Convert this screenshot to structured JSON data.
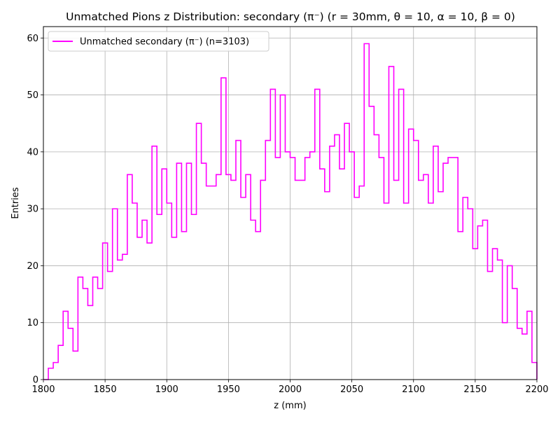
{
  "chart_data": {
    "type": "histogram-step",
    "title": "Unmatched Pions z Distribution: secondary (π⁻) (r = 30mm, θ = 10, α = 10, β = 0)",
    "xlabel": "z (mm)",
    "ylabel": "Entries",
    "xlim": [
      1800,
      2200
    ],
    "ylim": [
      0,
      62
    ],
    "xticks": [
      1800,
      1850,
      1900,
      1950,
      2000,
      2050,
      2100,
      2150,
      2200
    ],
    "yticks": [
      0,
      10,
      20,
      30,
      40,
      50,
      60
    ],
    "grid": true,
    "legend_position": "top-left",
    "series": [
      {
        "name": "Unmatched secondary (π⁻) (n=3103)",
        "color": "#ff00ff",
        "bin_start": 1800,
        "bin_width": 4,
        "counts": [
          0,
          2,
          3,
          6,
          12,
          9,
          5,
          18,
          16,
          13,
          18,
          16,
          24,
          19,
          30,
          21,
          22,
          36,
          31,
          25,
          28,
          24,
          41,
          29,
          37,
          31,
          25,
          38,
          26,
          38,
          29,
          45,
          38,
          34,
          34,
          36,
          53,
          36,
          35,
          42,
          32,
          36,
          28,
          26,
          35,
          42,
          51,
          39,
          50,
          40,
          39,
          35,
          35,
          39,
          40,
          51,
          37,
          33,
          41,
          43,
          37,
          45,
          40,
          32,
          34,
          59,
          48,
          43,
          39,
          31,
          55,
          35,
          51,
          31,
          44,
          42,
          35,
          36,
          31,
          41,
          33,
          38,
          39,
          39,
          26,
          32,
          30,
          23,
          27,
          28,
          19,
          23,
          21,
          10,
          20,
          16,
          9,
          8,
          12,
          3
        ]
      }
    ]
  }
}
